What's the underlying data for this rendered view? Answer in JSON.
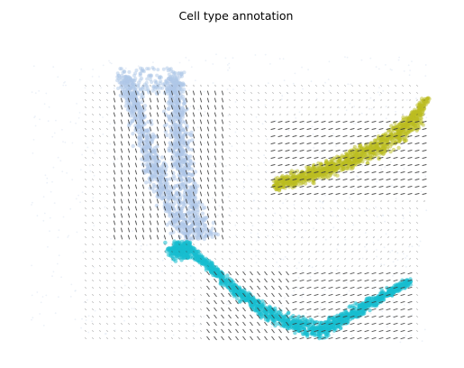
{
  "chart_data": {
    "type": "scatter",
    "subtype": "embedding-with-velocity-stream-arrows",
    "title": "Cell type annotation",
    "xlabel": "",
    "ylabel": "",
    "axes_visible": false,
    "grid": false,
    "legend": "none",
    "clusters": [
      {
        "color": "#aec7e8",
        "region": "left vertical band"
      },
      {
        "color": "#bcbd22",
        "region": "right horizontal band"
      },
      {
        "color": "#17becf",
        "region": "bottom curved band"
      }
    ],
    "arrow_color": "#3a3a3a"
  }
}
